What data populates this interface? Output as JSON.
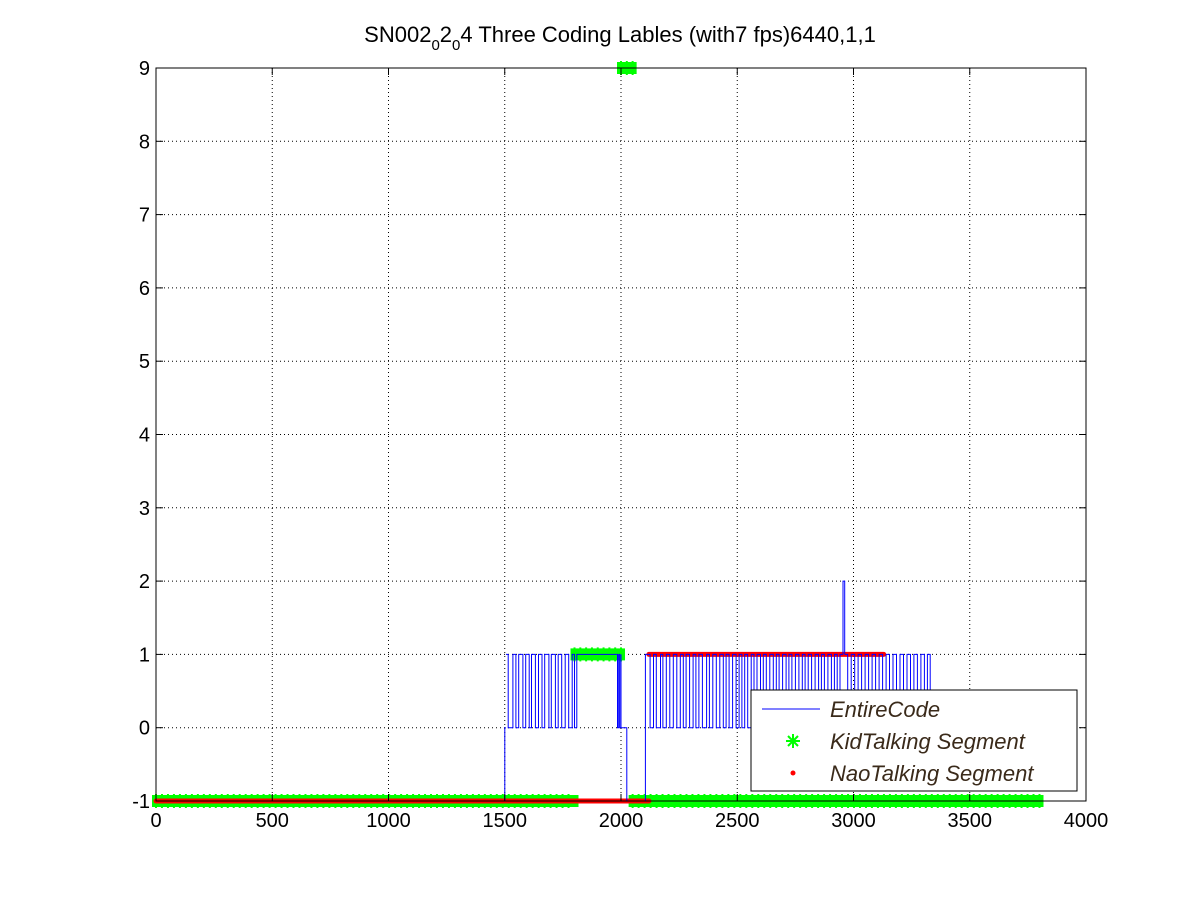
{
  "chart_data": {
    "type": "line",
    "title": {
      "parts": [
        "SN002",
        "0",
        "2",
        "0",
        "4 Three Coding Lables (with7 fps)6440,1,1"
      ],
      "subscript_parts": [
        1,
        3
      ]
    },
    "xlabel": "",
    "ylabel": "",
    "xlim": [
      0,
      4000
    ],
    "ylim": [
      -1,
      9
    ],
    "xticks": [
      0,
      500,
      1000,
      1500,
      2000,
      2500,
      3000,
      3500,
      4000
    ],
    "yticks": [
      -1,
      0,
      1,
      2,
      3,
      4,
      5,
      6,
      7,
      8,
      9
    ],
    "xtick_labels": [
      "0",
      "500",
      "1000",
      "1500",
      "2000",
      "2500",
      "3000",
      "3500",
      "4000"
    ],
    "ytick_labels": [
      "-1",
      "0",
      "1",
      "2",
      "3",
      "4",
      "5",
      "6",
      "7",
      "8",
      "9"
    ],
    "grid": true,
    "grid_style": "dotted",
    "legend_position": "bottom-right",
    "series": [
      {
        "name": "EntireCode",
        "kind": "line",
        "color": "#0000ff",
        "marker": "none",
        "segments": [
          {
            "x": [
              0,
              1500,
              1500,
              1505
            ],
            "y": [
              -1,
              -1,
              0,
              0
            ]
          },
          {
            "kind": "toggle",
            "x_start": 1505,
            "x_end": 1810,
            "low": 0,
            "high": 1,
            "toggles": [
              1515,
              1535,
              1548,
              1560,
              1578,
              1590,
              1605,
              1615,
              1632,
              1645,
              1660,
              1672,
              1690,
              1700,
              1718,
              1730,
              1745,
              1760,
              1775,
              1790,
              1800
            ]
          },
          {
            "x": [
              1810,
              1810,
              1815
            ],
            "y": [
              0,
              1,
              1
            ]
          },
          {
            "x": [
              1815,
              1980
            ],
            "y": [
              1,
              1
            ]
          },
          {
            "kind": "toggle",
            "x_start": 1980,
            "x_end": 2000,
            "low": 0,
            "high": 1,
            "toggles": [
              1985,
              1990,
              1995
            ]
          },
          {
            "x": [
              2000,
              2000,
              2025,
              2025
            ],
            "y": [
              1,
              0,
              0,
              -1
            ]
          },
          {
            "x": [
              2025,
              2105
            ],
            "y": [
              -1,
              -1
            ]
          },
          {
            "x": [
              2105,
              2105,
              2110
            ],
            "y": [
              -1,
              1,
              1
            ]
          },
          {
            "kind": "toggle",
            "x_start": 2110,
            "x_end": 2955,
            "low": 0,
            "high": 1,
            "toggles": [
              2125,
              2140,
              2152,
              2170,
              2180,
              2195,
              2210,
              2225,
              2240,
              2255,
              2268,
              2280,
              2295,
              2310,
              2322,
              2335,
              2350,
              2368,
              2380,
              2395,
              2410,
              2425,
              2440,
              2452,
              2465,
              2480,
              2495,
              2508,
              2520,
              2532,
              2545,
              2560,
              2572,
              2585,
              2600,
              2612,
              2625,
              2640,
              2655,
              2668,
              2680,
              2695,
              2710,
              2722,
              2735,
              2750,
              2765,
              2780,
              2792,
              2805,
              2820,
              2835,
              2850,
              2862,
              2875,
              2890,
              2905,
              2918,
              2930,
              2942
            ]
          },
          {
            "x": [
              2955,
              2955,
              2962,
              2962
            ],
            "y": [
              1,
              2,
              2,
              1
            ]
          },
          {
            "kind": "toggle",
            "x_start": 2962,
            "x_end": 3340,
            "low": 0,
            "high": 1,
            "toggles": [
              2975,
              2990,
              3005,
              3020,
              3035,
              3050,
              3065,
              3080,
              3095,
              3110,
              3125,
              3140,
              3155,
              3170,
              3185,
              3200,
              3215,
              3230,
              3245,
              3260,
              3275,
              3290,
              3305,
              3318,
              3330
            ]
          }
        ]
      },
      {
        "name": "KidTalking Segment",
        "kind": "markers",
        "color": "#00ff00",
        "marker": "star",
        "points_runs": [
          {
            "x_start": 0,
            "x_end": 1800,
            "y": -1
          },
          {
            "x_start": 1800,
            "x_end": 2000,
            "y": 1
          },
          {
            "x_start": 2000,
            "x_end": 2050,
            "y": 9
          },
          {
            "x_start": 2050,
            "x_end": 3800,
            "y": -1
          }
        ]
      },
      {
        "name": "NaoTalking Segment",
        "kind": "markers",
        "color": "#ff0000",
        "marker": "dot",
        "points_runs": [
          {
            "x_start": 0,
            "x_end": 2120,
            "y": -1
          },
          {
            "x_start": 2120,
            "x_end": 3130,
            "y": 1
          }
        ]
      }
    ]
  }
}
